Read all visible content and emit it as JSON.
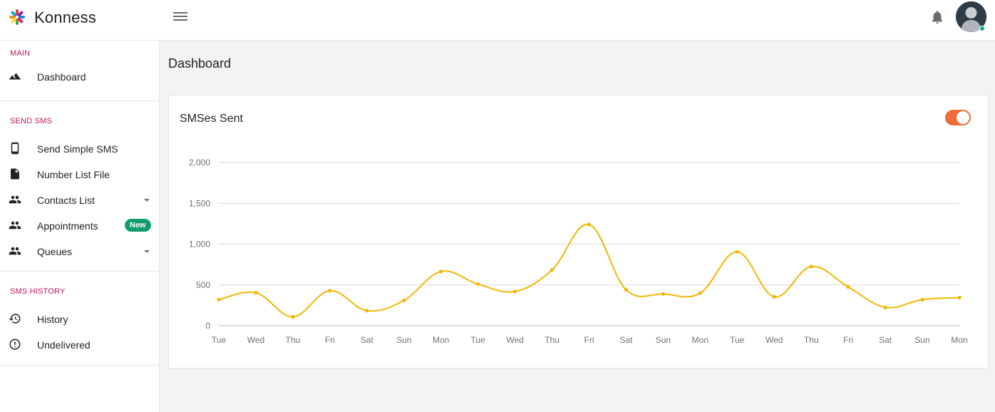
{
  "header": {
    "brand": "Konness",
    "menu_icon": "hamburger-icon",
    "notification_icon": "bell-icon",
    "avatar_status_color": "#19a874"
  },
  "sidebar": {
    "sections": [
      {
        "title": "MAIN",
        "items": [
          {
            "label": "Dashboard",
            "icon": "mountain-icon"
          }
        ]
      },
      {
        "title": "SEND SMS",
        "items": [
          {
            "label": "Send Simple SMS",
            "icon": "phone-icon"
          },
          {
            "label": "Number List File",
            "icon": "file-icon"
          },
          {
            "label": "Contacts List",
            "icon": "people-icon",
            "dropdown": true
          },
          {
            "label": "Appointments",
            "icon": "people-icon",
            "badge": "New"
          },
          {
            "label": "Queues",
            "icon": "people-icon",
            "dropdown": true
          }
        ]
      },
      {
        "title": "SMS HISTORY",
        "items": [
          {
            "label": "History",
            "icon": "history-icon"
          },
          {
            "label": "Undelivered",
            "icon": "alert-circle-icon"
          }
        ]
      }
    ]
  },
  "main": {
    "page_title": "Dashboard",
    "card": {
      "title": "SMSes Sent",
      "toggle_on": true,
      "toggle_color": "#ef6c3a"
    }
  },
  "chart_data": {
    "type": "line",
    "title": "SMSes Sent",
    "categories": [
      "Tue",
      "Wed",
      "Thu",
      "Fri",
      "Sat",
      "Sun",
      "Mon",
      "Tue",
      "Wed",
      "Thu",
      "Fri",
      "Sat",
      "Sun",
      "Mon",
      "Tue",
      "Wed",
      "Thu",
      "Fri",
      "Sat",
      "Sun",
      "Mon"
    ],
    "series": [
      {
        "values": [
          320,
          405,
          110,
          430,
          185,
          310,
          665,
          510,
          420,
          685,
          1240,
          440,
          390,
          400,
          905,
          355,
          725,
          475,
          225,
          320,
          345
        ],
        "color": "#f2b705"
      }
    ],
    "yticks": [
      "2,000",
      "1,500",
      "1,000",
      "500",
      "0"
    ],
    "ylim": [
      0,
      2000
    ],
    "grid": true,
    "xlabel": "",
    "ylabel": ""
  }
}
